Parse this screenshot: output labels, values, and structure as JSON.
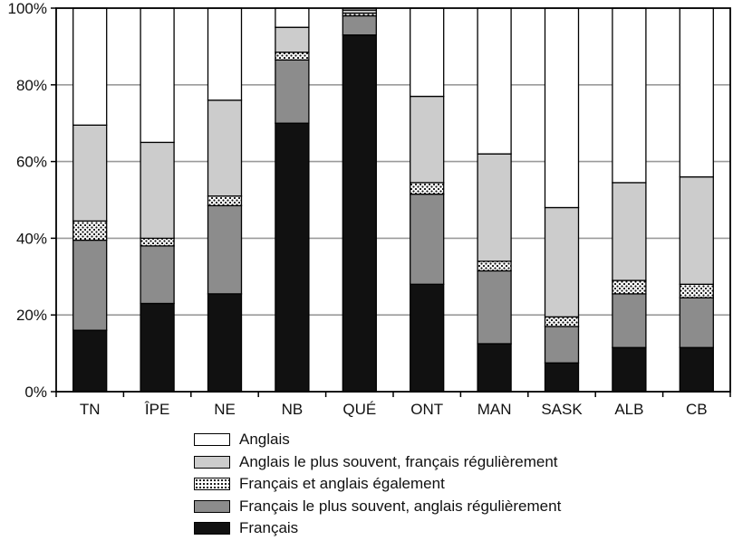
{
  "chart_data": {
    "type": "bar",
    "stacked": true,
    "categories": [
      "TN",
      "ÎPE",
      "NE",
      "NB",
      "QUÉ",
      "ONT",
      "MAN",
      "SASK",
      "ALB",
      "CB"
    ],
    "ylim": [
      0,
      100
    ],
    "yticks": [
      "0%",
      "20%",
      "40%",
      "60%",
      "80%",
      "100%"
    ],
    "ytick_values": [
      0,
      20,
      40,
      60,
      80,
      100
    ],
    "grid": "horizontal",
    "legend_position": "bottom",
    "series": [
      {
        "name": "Français",
        "pattern": "solid-black",
        "color": "#111111",
        "values": [
          16,
          23,
          25.5,
          70,
          93,
          28,
          12.5,
          7.5,
          11.5,
          11.5
        ]
      },
      {
        "name": "Français le plus souvent, anglais régulièrement",
        "pattern": "dark-gray",
        "color": "#8c8c8c",
        "values": [
          23.5,
          15,
          23,
          16.5,
          5,
          23.5,
          19,
          9.5,
          14,
          13
        ]
      },
      {
        "name": "Français et anglais également",
        "pattern": "dotted",
        "color": "#ffffff",
        "values": [
          5,
          2,
          2.5,
          2,
          0.7,
          3,
          2.5,
          2.5,
          3.5,
          3.5
        ]
      },
      {
        "name": "Anglais le plus souvent, français régulièrement",
        "pattern": "light-gray",
        "color": "#cccccc",
        "values": [
          25,
          25,
          25,
          6.5,
          0.8,
          22.5,
          28,
          28.5,
          25.5,
          28
        ]
      },
      {
        "name": "Anglais",
        "pattern": "white",
        "color": "#ffffff",
        "values": [
          30.5,
          35,
          24,
          5,
          0.5,
          23,
          38,
          52,
          45.5,
          44
        ]
      }
    ],
    "legend_order": [
      "Anglais",
      "Anglais le plus souvent, français régulièrement",
      "Français et anglais également",
      "Français le plus souvent, anglais régulièrement",
      "Français"
    ]
  }
}
